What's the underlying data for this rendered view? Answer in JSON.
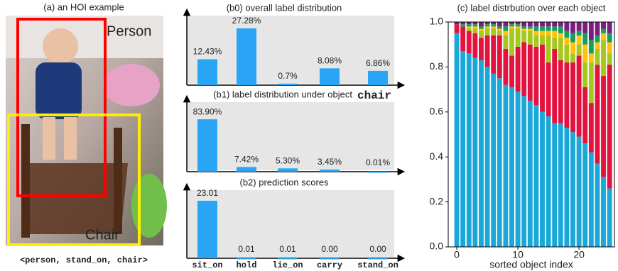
{
  "example": {
    "title": "(a) an HOI example",
    "boxes": [
      {
        "label": "Person",
        "color": "#ff0000"
      },
      {
        "label": "Chair",
        "color": "#ffee00"
      }
    ],
    "caption": "<person, stand_on, chair>"
  },
  "chart_data": [
    {
      "type": "bar",
      "title": "(b0) overall label distribution",
      "color": "#2aa4f4",
      "values": [
        12.43,
        27.28,
        0.7,
        8.08,
        6.86
      ],
      "value_labels": [
        "12.43%",
        "27.28%",
        "0.7%",
        "8.08%",
        "6.86%"
      ],
      "ylim": [
        0,
        30
      ]
    },
    {
      "type": "bar",
      "title": "(b1) label distribution under object",
      "title_object": "chair",
      "color": "#2aa4f4",
      "values": [
        83.9,
        7.42,
        5.3,
        3.45,
        0.01
      ],
      "value_labels": [
        "83.90%",
        "7.42%",
        "5.30%",
        "3.45%",
        "0.01%"
      ],
      "ylim": [
        0,
        100
      ]
    },
    {
      "type": "bar",
      "title": "(b2) prediction scores",
      "color": "#2aa4f4",
      "categories": [
        "sit_on",
        "hold",
        "lie_on",
        "carry",
        "stand_on"
      ],
      "values": [
        23.01,
        0.01,
        0.01,
        0.0,
        0.0
      ],
      "value_labels": [
        "23.01",
        "0.01",
        "0.01",
        "0.00",
        "0.00"
      ],
      "ylim": [
        0,
        25
      ]
    },
    {
      "type": "stacked_bar",
      "title": "(c) label distrbution over each object",
      "xlabel": "sorted object index",
      "x": [
        0,
        1,
        2,
        3,
        4,
        5,
        6,
        7,
        8,
        9,
        10,
        11,
        12,
        13,
        14,
        15,
        16,
        17,
        18,
        19,
        20,
        21,
        22,
        23,
        24,
        25
      ],
      "xlim": [
        -1.4,
        25.8
      ],
      "xticks": [
        0,
        10,
        20
      ],
      "ylim": [
        0,
        1
      ],
      "yticks": [
        {
          "value": 0,
          "label": "0.0"
        },
        0.2,
        0.4,
        0.6,
        0.8,
        {
          "value": 1,
          "label": "1.0"
        }
      ],
      "series": [
        {
          "color": "#1ba8d8",
          "values": [
            0.95,
            0.87,
            0.86,
            0.84,
            0.83,
            0.8,
            0.77,
            0.75,
            0.72,
            0.71,
            0.69,
            0.67,
            0.65,
            0.63,
            0.6,
            0.58,
            0.55,
            0.55,
            0.53,
            0.51,
            0.49,
            0.46,
            0.42,
            0.37,
            0.31,
            0.26
          ]
        },
        {
          "color": "#e2143f",
          "values": [
            0.04,
            0.11,
            0.1,
            0.11,
            0.1,
            0.14,
            0.17,
            0.19,
            0.16,
            0.14,
            0.2,
            0.24,
            0.25,
            0.26,
            0.3,
            0.24,
            0.33,
            0.28,
            0.29,
            0.31,
            0.36,
            0.25,
            0.22,
            0.44,
            0.45,
            0.55
          ]
        },
        {
          "color": "#a5c71e",
          "values": [
            0,
            0,
            0.01,
            0.02,
            0.03,
            0.03,
            0.03,
            0.02,
            0.06,
            0.12,
            0.08,
            0.05,
            0.06,
            0.05,
            0.04,
            0.12,
            0.05,
            0.1,
            0.08,
            0.04,
            0.05,
            0.11,
            0.18,
            0.07,
            0.16,
            0.05
          ]
        },
        {
          "color": "#ffc20e",
          "values": [
            0,
            0,
            0.01,
            0.01,
            0.01,
            0.01,
            0.01,
            0.01,
            0.02,
            0.01,
            0.01,
            0.01,
            0.01,
            0.02,
            0.02,
            0.02,
            0.03,
            0.02,
            0.03,
            0.05,
            0.04,
            0.08,
            0.04,
            0.03,
            0.03,
            0.05
          ]
        },
        {
          "color": "#12a05a",
          "values": [
            0,
            0.01,
            0.01,
            0.01,
            0.01,
            0.01,
            0.01,
            0.01,
            0.02,
            0.01,
            0.01,
            0.01,
            0.01,
            0.02,
            0.02,
            0.02,
            0.02,
            0.03,
            0.03,
            0.04,
            0.02,
            0.05,
            0.06,
            0.03,
            0.02,
            0.04
          ]
        },
        {
          "color": "#7a1e7e",
          "values": [
            0.01,
            0.01,
            0.01,
            0.01,
            0.02,
            0.01,
            0.01,
            0.02,
            0.02,
            0.01,
            0.01,
            0.02,
            0.02,
            0.02,
            0.02,
            0.02,
            0.02,
            0.02,
            0.04,
            0.05,
            0.04,
            0.05,
            0.08,
            0.06,
            0.03,
            0.05
          ]
        }
      ]
    }
  ]
}
